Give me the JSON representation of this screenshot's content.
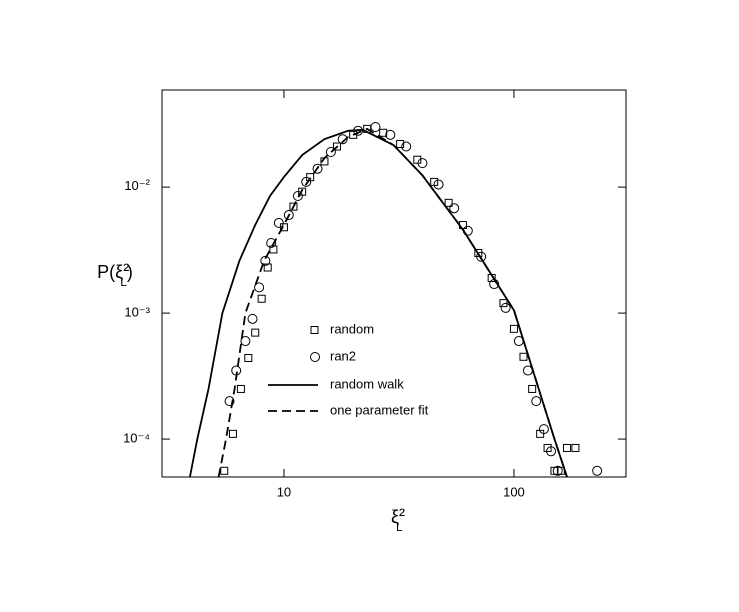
{
  "chart_data": {
    "type": "scatter",
    "xlabel": "ξ²L",
    "ylabel": "P(ξ²L)",
    "xscale": "log",
    "yscale": "log",
    "xlim": [
      2.95,
      307
    ],
    "ylim": [
      5e-05,
      0.059
    ],
    "xticks": [
      10,
      100
    ],
    "yticks": [
      {
        "value": 0.0001,
        "label": "10⁻⁴"
      },
      {
        "value": 0.001,
        "label": "10⁻³"
      },
      {
        "value": 0.01,
        "label": "10⁻²"
      }
    ],
    "series": [
      {
        "name": "random",
        "marker": "square",
        "color": "#000000",
        "x": [
          5.5,
          6.0,
          6.5,
          7,
          7.5,
          8,
          8.5,
          9,
          10,
          11,
          12,
          13,
          15,
          17,
          20,
          23,
          27,
          32,
          38,
          45,
          52,
          60,
          70,
          80,
          90,
          100,
          110,
          120,
          130,
          140,
          150,
          160,
          170,
          185
        ],
        "values": [
          5.6e-05,
          0.00011,
          0.00025,
          0.00044,
          0.0007,
          0.0013,
          0.0023,
          0.0032,
          0.0048,
          0.007,
          0.0092,
          0.012,
          0.016,
          0.021,
          0.026,
          0.029,
          0.027,
          0.022,
          0.0165,
          0.011,
          0.0075,
          0.005,
          0.003,
          0.0019,
          0.0012,
          0.00075,
          0.00045,
          0.00025,
          0.00011,
          8.5e-05,
          5.6e-05,
          5.6e-05,
          8.5e-05,
          8.5e-05
        ]
      },
      {
        "name": "ran2",
        "marker": "circle",
        "color": "#000000",
        "x": [
          5.8,
          6.2,
          6.8,
          7.3,
          7.8,
          8.3,
          8.8,
          9.5,
          10.5,
          11.5,
          12.5,
          14,
          16,
          18,
          21,
          25,
          29,
          34,
          40,
          47,
          55,
          63,
          72,
          82,
          92,
          105,
          115,
          125,
          135,
          145,
          155,
          230
        ],
        "values": [
          0.0002,
          0.00035,
          0.0006,
          0.0009,
          0.0016,
          0.0026,
          0.0036,
          0.0052,
          0.006,
          0.0085,
          0.011,
          0.014,
          0.019,
          0.024,
          0.028,
          0.03,
          0.026,
          0.021,
          0.0155,
          0.0105,
          0.0068,
          0.0045,
          0.0028,
          0.0017,
          0.0011,
          0.0006,
          0.00035,
          0.0002,
          0.00012,
          8e-05,
          5.6e-05,
          5.6e-05
        ]
      },
      {
        "name": "random walk",
        "line": "solid",
        "color": "#000000",
        "x": [
          3.9,
          4.2,
          4.7,
          5.4,
          6.4,
          7.5,
          8.7,
          10,
          12,
          15,
          19,
          22,
          30,
          40,
          60,
          100,
          150,
          170
        ],
        "values": [
          5e-05,
          0.0001,
          0.00025,
          0.001,
          0.0026,
          0.005,
          0.0085,
          0.012,
          0.018,
          0.024,
          0.028,
          0.0285,
          0.0215,
          0.0124,
          0.0046,
          0.00105,
          0.0001,
          5e-05
        ]
      },
      {
        "name": "one parameter fit",
        "line": "dashed",
        "color": "#000000",
        "x": [
          5.2,
          5.6,
          6.1,
          6.8,
          8.2,
          10,
          12,
          15,
          19,
          23,
          30,
          40,
          60,
          100,
          150,
          170
        ],
        "values": [
          5e-05,
          0.0001,
          0.00025,
          0.001,
          0.0026,
          0.005,
          0.0095,
          0.017,
          0.025,
          0.029,
          0.0215,
          0.0124,
          0.0046,
          0.00105,
          0.0001,
          5e-05
        ]
      }
    ]
  }
}
